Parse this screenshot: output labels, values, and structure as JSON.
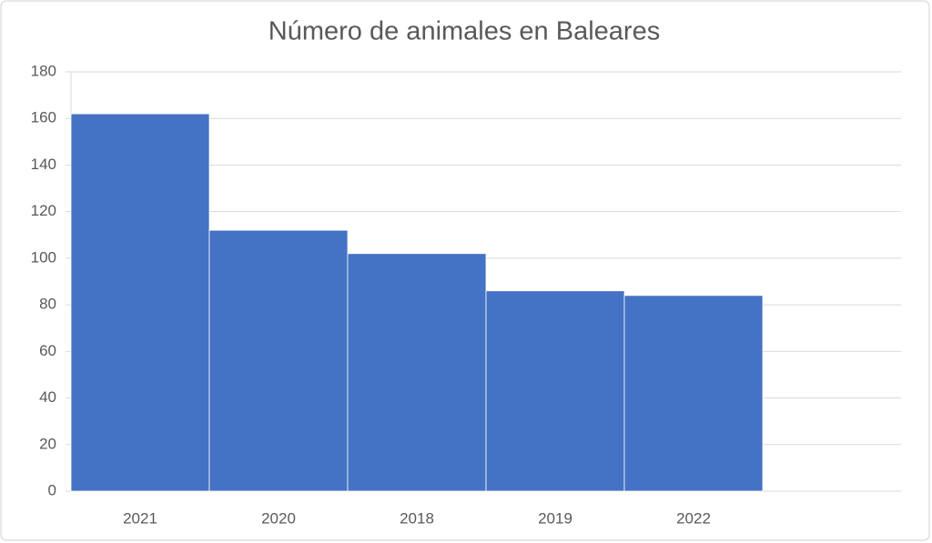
{
  "chart_data": {
    "type": "bar",
    "title": "Número de animales en Baleares",
    "categories": [
      "2021",
      "2020",
      "2018",
      "2019",
      "2022",
      null
    ],
    "values": [
      162,
      112,
      102,
      86,
      84,
      null
    ],
    "color": "#4472c4",
    "ylim": [
      0,
      180
    ],
    "yticks": [
      0,
      20,
      40,
      60,
      80,
      100,
      120,
      140,
      160,
      180
    ],
    "grid": true
  }
}
